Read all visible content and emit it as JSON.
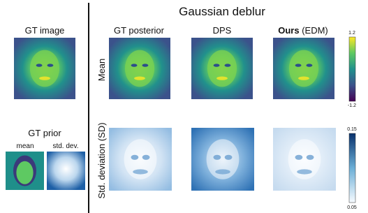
{
  "figure": {
    "title": "Gaussian deblur",
    "left": {
      "gt_image": "GT image",
      "gt_prior": "GT prior",
      "mean": "mean",
      "std": "std. dev."
    },
    "columns": [
      "GT posterior",
      "DPS"
    ],
    "ours": {
      "bold": "Ours",
      "rest": "(EDM)"
    },
    "rows": [
      "Mean",
      "Std. deviation (SD)"
    ],
    "colorbars": [
      {
        "max": "1.2",
        "min": "-1.2"
      },
      {
        "max": "0.15",
        "min": "0.05"
      }
    ]
  }
}
